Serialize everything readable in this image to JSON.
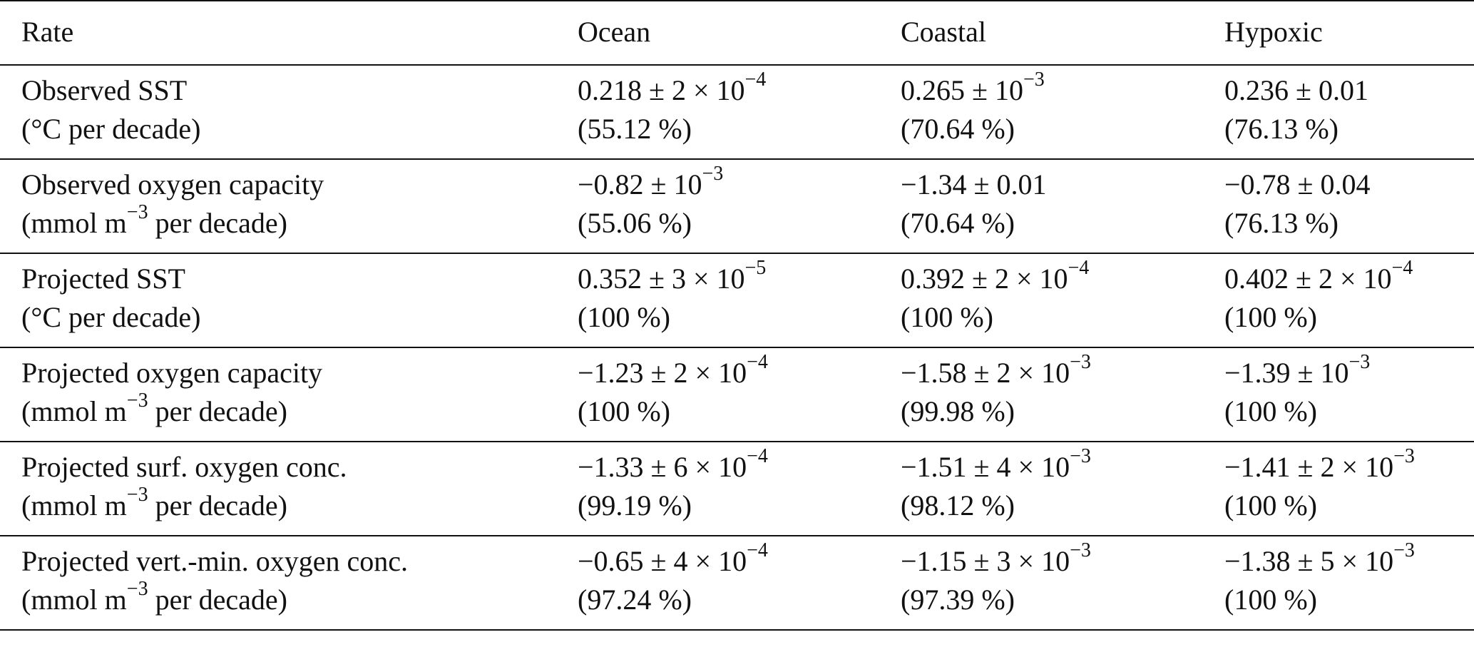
{
  "header": {
    "rate": "Rate",
    "ocean": "Ocean",
    "coastal": "Coastal",
    "hypoxic": "Hypoxic"
  },
  "rows": [
    {
      "name": "Observed SST",
      "unit_pre": "(°C per decade)",
      "unit_sup": "",
      "unit_post": "",
      "ocean": {
        "pre": "0.218 ± 2 × 10",
        "exp": "−4",
        "pct": "(55.12 %)"
      },
      "coastal": {
        "pre": "0.265 ± 10",
        "exp": "−3",
        "pct": "(70.64 %)"
      },
      "hypoxic": {
        "pre": "0.236 ± 0.01",
        "exp": "",
        "pct": "(76.13 %)"
      }
    },
    {
      "name": "Observed oxygen capacity",
      "unit_pre": "(mmol m",
      "unit_sup": "−3",
      "unit_post": " per decade)",
      "ocean": {
        "pre": "−0.82 ± 10",
        "exp": "−3",
        "pct": "(55.06 %)"
      },
      "coastal": {
        "pre": "−1.34 ± 0.01",
        "exp": "",
        "pct": "(70.64 %)"
      },
      "hypoxic": {
        "pre": "−0.78 ± 0.04",
        "exp": "",
        "pct": "(76.13 %)"
      }
    },
    {
      "name": "Projected SST",
      "unit_pre": "(°C per decade)",
      "unit_sup": "",
      "unit_post": "",
      "ocean": {
        "pre": "0.352 ± 3 × 10",
        "exp": "−5",
        "pct": "(100 %)"
      },
      "coastal": {
        "pre": "0.392 ± 2 × 10",
        "exp": "−4",
        "pct": "(100 %)"
      },
      "hypoxic": {
        "pre": "0.402 ± 2 × 10",
        "exp": "−4",
        "pct": "(100 %)"
      }
    },
    {
      "name": "Projected oxygen capacity",
      "unit_pre": "(mmol m",
      "unit_sup": "−3",
      "unit_post": " per decade)",
      "ocean": {
        "pre": "−1.23 ± 2 × 10",
        "exp": "−4",
        "pct": "(100 %)"
      },
      "coastal": {
        "pre": "−1.58 ± 2 × 10",
        "exp": "−3",
        "pct": "(99.98 %)"
      },
      "hypoxic": {
        "pre": "−1.39 ± 10",
        "exp": "−3",
        "pct": "(100 %)"
      }
    },
    {
      "name": "Projected surf. oxygen conc.",
      "unit_pre": "(mmol m",
      "unit_sup": "−3",
      "unit_post": " per decade)",
      "ocean": {
        "pre": "−1.33 ± 6 × 10",
        "exp": "−4",
        "pct": "(99.19 %)"
      },
      "coastal": {
        "pre": "−1.51 ± 4 × 10",
        "exp": "−3",
        "pct": "(98.12 %)"
      },
      "hypoxic": {
        "pre": "−1.41 ± 2 × 10",
        "exp": "−3",
        "pct": "(100 %)"
      }
    },
    {
      "name": "Projected vert.-min. oxygen conc.",
      "unit_pre": "(mmol m",
      "unit_sup": "−3",
      "unit_post": " per decade)",
      "ocean": {
        "pre": "−0.65 ± 4 × 10",
        "exp": "−4",
        "pct": "(97.24 %)"
      },
      "coastal": {
        "pre": "−1.15 ± 3 × 10",
        "exp": "−3",
        "pct": "(97.39 %)"
      },
      "hypoxic": {
        "pre": "−1.38 ± 5 × 10",
        "exp": "−3",
        "pct": "(100 %)"
      }
    }
  ]
}
